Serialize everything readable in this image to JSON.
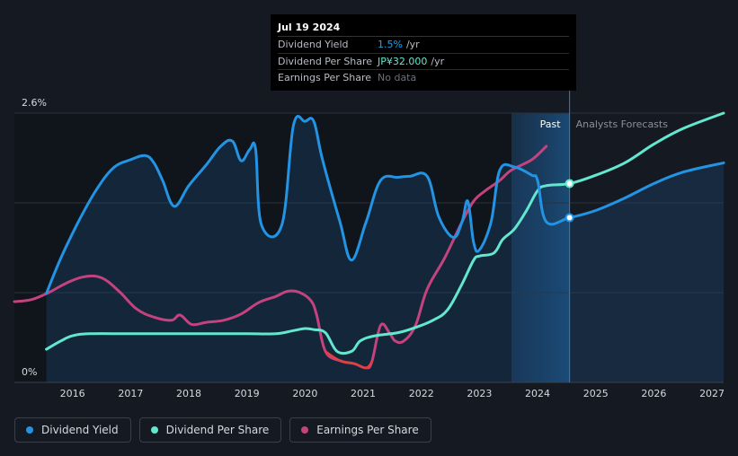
{
  "tooltip": {
    "date": "Jul 19 2024",
    "rows": [
      {
        "label": "Dividend Yield",
        "value": "1.5%",
        "unit": "/yr"
      },
      {
        "label": "Dividend Per Share",
        "value": "JP¥32.000",
        "unit": "/yr"
      },
      {
        "label": "Earnings Per Share",
        "value": "No data",
        "unit": ""
      }
    ]
  },
  "legend": [
    {
      "label": "Dividend Yield",
      "color": "#2394e3"
    },
    {
      "label": "Dividend Per Share",
      "color": "#64e7cf"
    },
    {
      "label": "Earnings Per Share",
      "color": "#c4437f"
    }
  ],
  "chart_data": {
    "type": "line",
    "x_ticks": [
      "2016",
      "2017",
      "2018",
      "2019",
      "2020",
      "2021",
      "2022",
      "2023",
      "2024",
      "2025",
      "2026",
      "2027"
    ],
    "y_ticks": [
      "2.6%",
      "0%"
    ],
    "ylim": [
      0,
      2.6
    ],
    "xlim": [
      2015.0,
      2027.2
    ],
    "past_label": "Past",
    "forecast_label": "Analysts Forecasts",
    "forecast_start": 2024.55,
    "series": [
      {
        "name": "Dividend Yield",
        "color": "#2394e3",
        "points": [
          [
            2015.55,
            0.86
          ],
          [
            2015.8,
            1.2
          ],
          [
            2016.1,
            1.55
          ],
          [
            2016.4,
            1.85
          ],
          [
            2016.7,
            2.07
          ],
          [
            2017.0,
            2.15
          ],
          [
            2017.25,
            2.19
          ],
          [
            2017.4,
            2.12
          ],
          [
            2017.55,
            1.95
          ],
          [
            2017.75,
            1.7
          ],
          [
            2018.0,
            1.9
          ],
          [
            2018.3,
            2.1
          ],
          [
            2018.55,
            2.28
          ],
          [
            2018.75,
            2.33
          ],
          [
            2018.9,
            2.14
          ],
          [
            2019.05,
            2.25
          ],
          [
            2019.15,
            2.25
          ],
          [
            2019.25,
            1.52
          ],
          [
            2019.6,
            1.52
          ],
          [
            2019.8,
            2.48
          ],
          [
            2020.0,
            2.52
          ],
          [
            2020.15,
            2.52
          ],
          [
            2020.3,
            2.15
          ],
          [
            2020.6,
            1.55
          ],
          [
            2020.8,
            1.18
          ],
          [
            2021.05,
            1.55
          ],
          [
            2021.3,
            1.95
          ],
          [
            2021.6,
            1.98
          ],
          [
            2021.8,
            1.99
          ],
          [
            2022.1,
            1.99
          ],
          [
            2022.3,
            1.6
          ],
          [
            2022.55,
            1.4
          ],
          [
            2022.7,
            1.55
          ],
          [
            2022.8,
            1.75
          ],
          [
            2022.9,
            1.35
          ],
          [
            2023.0,
            1.28
          ],
          [
            2023.2,
            1.55
          ],
          [
            2023.35,
            2.05
          ],
          [
            2023.6,
            2.08
          ],
          [
            2023.9,
            2.0
          ],
          [
            2024.0,
            1.95
          ],
          [
            2024.15,
            1.55
          ],
          [
            2024.55,
            1.59
          ],
          [
            2025.0,
            1.66
          ],
          [
            2025.5,
            1.78
          ],
          [
            2026.0,
            1.92
          ],
          [
            2026.5,
            2.03
          ],
          [
            2027.2,
            2.12
          ]
        ]
      },
      {
        "name": "Dividend Per Share",
        "color": "#64e7cf",
        "points": [
          [
            2015.55,
            0.32
          ],
          [
            2015.8,
            0.4
          ],
          [
            2016.0,
            0.45
          ],
          [
            2016.3,
            0.47
          ],
          [
            2017.0,
            0.47
          ],
          [
            2018.0,
            0.47
          ],
          [
            2019.0,
            0.47
          ],
          [
            2019.5,
            0.47
          ],
          [
            2019.8,
            0.5
          ],
          [
            2020.0,
            0.52
          ],
          [
            2020.15,
            0.51
          ],
          [
            2020.35,
            0.48
          ],
          [
            2020.55,
            0.3
          ],
          [
            2020.8,
            0.3
          ],
          [
            2020.95,
            0.4
          ],
          [
            2021.2,
            0.45
          ],
          [
            2021.6,
            0.48
          ],
          [
            2021.9,
            0.53
          ],
          [
            2022.2,
            0.6
          ],
          [
            2022.45,
            0.7
          ],
          [
            2022.7,
            0.95
          ],
          [
            2022.9,
            1.18
          ],
          [
            2023.0,
            1.22
          ],
          [
            2023.25,
            1.25
          ],
          [
            2023.4,
            1.38
          ],
          [
            2023.6,
            1.48
          ],
          [
            2023.8,
            1.65
          ],
          [
            2024.0,
            1.85
          ],
          [
            2024.15,
            1.9
          ],
          [
            2024.55,
            1.92
          ],
          [
            2025.0,
            2.0
          ],
          [
            2025.5,
            2.12
          ],
          [
            2026.0,
            2.3
          ],
          [
            2026.5,
            2.45
          ],
          [
            2027.2,
            2.6
          ]
        ]
      },
      {
        "name": "Earnings Per Share",
        "color": "#c4437f",
        "points": [
          [
            2015.0,
            0.78
          ],
          [
            2015.3,
            0.8
          ],
          [
            2015.6,
            0.87
          ],
          [
            2015.9,
            0.96
          ],
          [
            2016.2,
            1.02
          ],
          [
            2016.5,
            1.01
          ],
          [
            2016.8,
            0.88
          ],
          [
            2017.1,
            0.71
          ],
          [
            2017.4,
            0.63
          ],
          [
            2017.7,
            0.6
          ],
          [
            2017.85,
            0.65
          ],
          [
            2018.05,
            0.56
          ],
          [
            2018.3,
            0.58
          ],
          [
            2018.6,
            0.6
          ],
          [
            2018.9,
            0.66
          ],
          [
            2019.2,
            0.77
          ],
          [
            2019.5,
            0.83
          ],
          [
            2019.7,
            0.88
          ],
          [
            2019.9,
            0.87
          ],
          [
            2020.1,
            0.79
          ],
          [
            2020.2,
            0.65
          ],
          [
            2020.35,
            0.3
          ],
          [
            2020.6,
            0.21
          ],
          [
            2020.85,
            0.18
          ],
          [
            2021.05,
            0.14
          ],
          [
            2021.15,
            0.2
          ],
          [
            2021.3,
            0.55
          ],
          [
            2021.45,
            0.48
          ],
          [
            2021.55,
            0.4
          ],
          [
            2021.7,
            0.4
          ],
          [
            2021.9,
            0.55
          ],
          [
            2022.1,
            0.9
          ],
          [
            2022.4,
            1.2
          ],
          [
            2022.7,
            1.55
          ],
          [
            2022.9,
            1.75
          ],
          [
            2023.1,
            1.85
          ],
          [
            2023.35,
            1.95
          ],
          [
            2023.55,
            2.05
          ],
          [
            2023.9,
            2.15
          ],
          [
            2024.15,
            2.28
          ]
        ]
      }
    ]
  }
}
